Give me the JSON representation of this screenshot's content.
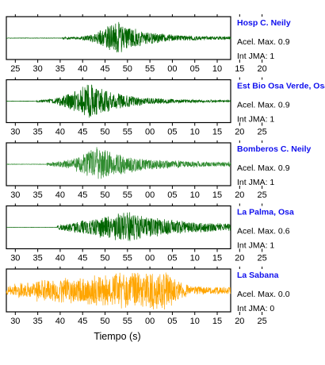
{
  "chart_data": {
    "type": "line",
    "xlabel": "Tiempo (s)",
    "grid": false,
    "panels": [
      {
        "station": "Hosp C. Neily",
        "accel_label": "Acel. Max. 0.9",
        "int_label": "Int JMA: 1",
        "color": "#006400",
        "x_ticks": [
          "25",
          "30",
          "35",
          "40",
          "45",
          "50",
          "55",
          "00",
          "05",
          "10",
          "15",
          "20"
        ],
        "xlim": [
          23,
          73
        ],
        "onset": 35.5,
        "peak_time": 47,
        "rise": 9,
        "decay": 6.5,
        "peak_amplitude": 1.0,
        "coda": 0.06,
        "noise": 0.01,
        "seed": 11
      },
      {
        "station": "Est Bio Osa Verde, Osa",
        "accel_label": "Acel. Max. 0.9",
        "int_label": "Int JMA: 1",
        "color": "#006400",
        "x_ticks": [
          "30",
          "35",
          "40",
          "45",
          "50",
          "55",
          "00",
          "05",
          "10",
          "15",
          "20",
          "25"
        ],
        "xlim": [
          28,
          78
        ],
        "onset": 34.5,
        "peak_time": 46.5,
        "rise": 6,
        "decay": 7,
        "peak_amplitude": 1.0,
        "coda": 0.05,
        "noise": 0.01,
        "seed": 23
      },
      {
        "station": "Bomberos C. Neily",
        "accel_label": "Acel. Max. 0.9",
        "int_label": "Int JMA: 1",
        "color": "#2e8b2e",
        "x_ticks": [
          "30",
          "35",
          "40",
          "45",
          "50",
          "55",
          "00",
          "05",
          "10",
          "15",
          "20",
          "25"
        ],
        "xlim": [
          28,
          78
        ],
        "onset": 37,
        "peak_time": 48,
        "rise": 6,
        "decay": 8,
        "peak_amplitude": 1.0,
        "coda": 0.1,
        "noise": 0.01,
        "seed": 37
      },
      {
        "station": "La Palma, Osa",
        "accel_label": "Acel. Max. 0.6",
        "int_label": "Int JMA: 1",
        "color": "#006400",
        "x_ticks": [
          "30",
          "35",
          "40",
          "45",
          "50",
          "55",
          "00",
          "05",
          "10",
          "15",
          "20",
          "25"
        ],
        "xlim": [
          28,
          78
        ],
        "onset": 39.3,
        "peak_time": 55,
        "rise": 3,
        "decay": 11,
        "peak_amplitude": 0.85,
        "coda": 0.12,
        "noise": 0.004,
        "seed": 41
      },
      {
        "station": "La Sabana",
        "accel_label": "Acel. Max. 0.0",
        "int_label": "Int JMA: 0",
        "color": "#ffa500",
        "x_ticks": [
          "30",
          "35",
          "40",
          "45",
          "50",
          "55",
          "00",
          "05",
          "10",
          "15",
          "20",
          "25"
        ],
        "xlim": [
          28,
          78
        ],
        "onset": 28,
        "peak_time": 64.5,
        "rise": 1.5,
        "decay": 2.5,
        "peak_amplitude": 1.0,
        "coda": 0.0,
        "noise": 0.18,
        "seed": 53
      }
    ]
  }
}
